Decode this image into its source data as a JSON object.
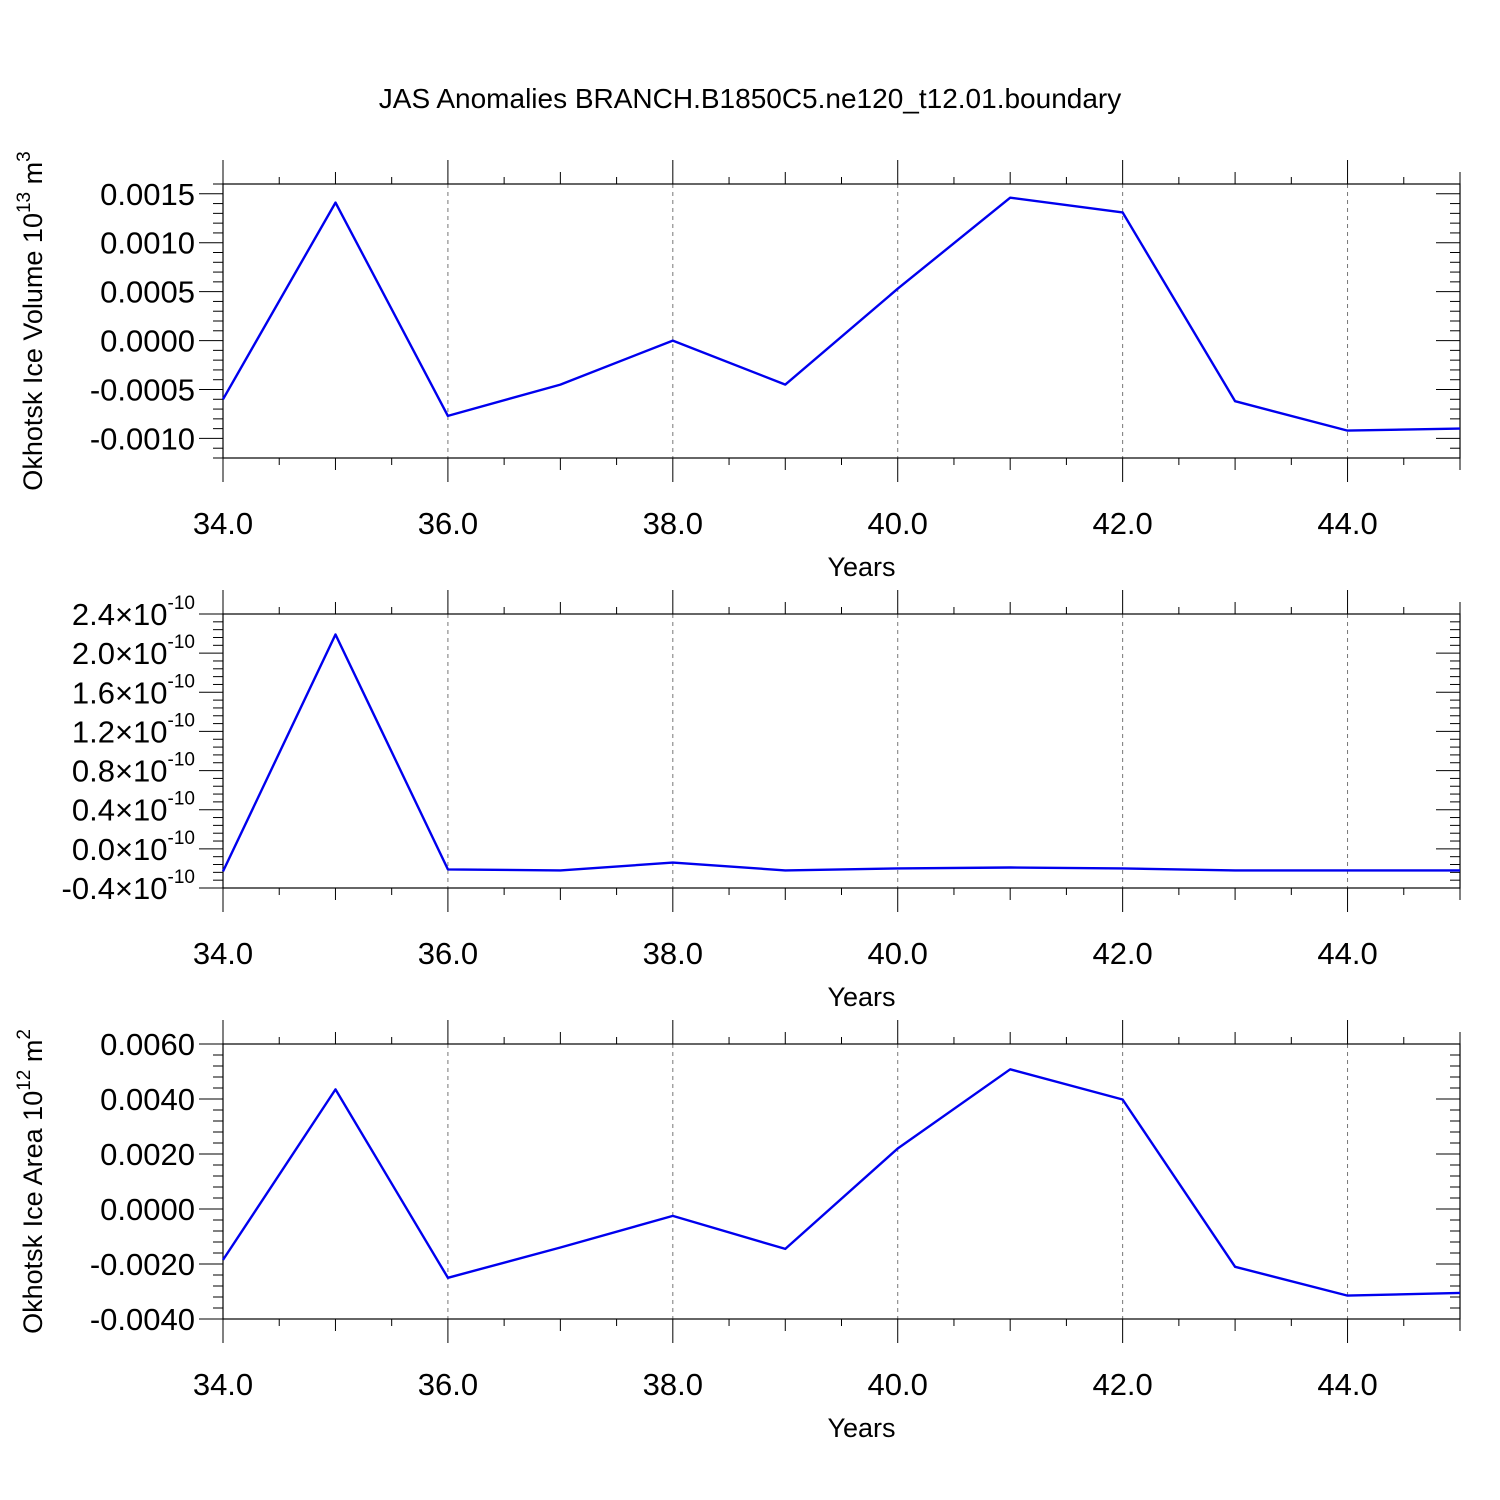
{
  "figure_title": "JAS Anomalies BRANCH.B1850C5.ne120_t12.01.boundary",
  "chart_data": [
    {
      "type": "line",
      "id": "ice-volume",
      "title": "",
      "xlabel": "Years",
      "ylabel": "Okhotsk Ice Volume 10",
      "ylabel_superscript": "13",
      "ylabel_unit": "m",
      "ylabel_unit_superscript": "3",
      "xlim": [
        34,
        45
      ],
      "ylim": [
        -0.0012,
        0.0016
      ],
      "x_ticks": [
        34,
        36,
        38,
        40,
        42,
        44
      ],
      "x_tick_labels": [
        "34.0",
        "36.0",
        "38.0",
        "40.0",
        "42.0",
        "44.0"
      ],
      "y_ticks": [
        -0.001,
        -0.0005,
        0,
        0.0005,
        0.001,
        0.0015
      ],
      "y_tick_labels": [
        "-0.0010",
        "-0.0005",
        "0.0000",
        "0.0005",
        "0.0010",
        "0.0015"
      ],
      "grid": "vertical-dashed",
      "line_color": "#0000ee",
      "x": [
        34,
        35,
        36,
        37,
        38,
        39,
        40,
        41,
        42,
        43,
        44,
        45
      ],
      "values": [
        -0.0006,
        0.00141,
        -0.00077,
        -0.00045,
        0.0,
        -0.00045,
        0.00053,
        0.00146,
        0.00131,
        -0.00062,
        -0.00092,
        -0.0009
      ]
    },
    {
      "type": "line",
      "id": "snow-volume",
      "title": "",
      "xlabel": "Years",
      "ylabel": "",
      "xlim": [
        34,
        45
      ],
      "ylim": [
        -4e-11,
        2.4e-10
      ],
      "x_ticks": [
        34,
        36,
        38,
        40,
        42,
        44
      ],
      "x_tick_labels": [
        "34.0",
        "36.0",
        "38.0",
        "40.0",
        "42.0",
        "44.0"
      ],
      "y_ticks": [
        -4e-11,
        0,
        4e-11,
        8e-11,
        1.2e-10,
        1.6e-10,
        2e-10,
        2.4e-10
      ],
      "y_tick_mantissas": [
        "-0.4",
        "0.0",
        "0.4",
        "0.8",
        "1.2",
        "1.6",
        "2.0",
        "2.4"
      ],
      "y_tick_times": "×10",
      "y_tick_exponent": "-10",
      "grid": "vertical-dashed",
      "line_color": "#0000ee",
      "x": [
        34,
        35,
        36,
        37,
        38,
        39,
        40,
        41,
        42,
        43,
        44,
        45
      ],
      "values": [
        -2.3e-11,
        2.19e-10,
        -2.1e-11,
        -2.2e-11,
        -1.4e-11,
        -2.2e-11,
        -2e-11,
        -1.9e-11,
        -2e-11,
        -2.2e-11,
        -2.2e-11,
        -2.2e-11
      ]
    },
    {
      "type": "line",
      "id": "ice-area",
      "title": "",
      "xlabel": "Years",
      "ylabel": "Okhotsk Ice Area 10",
      "ylabel_superscript": "12",
      "ylabel_unit": "m",
      "ylabel_unit_superscript": "2",
      "xlim": [
        34,
        45
      ],
      "ylim": [
        -0.004,
        0.006
      ],
      "x_ticks": [
        34,
        36,
        38,
        40,
        42,
        44
      ],
      "x_tick_labels": [
        "34.0",
        "36.0",
        "38.0",
        "40.0",
        "42.0",
        "44.0"
      ],
      "y_ticks": [
        -0.004,
        -0.002,
        0,
        0.002,
        0.004,
        0.006
      ],
      "y_tick_labels": [
        "-0.0040",
        "-0.0020",
        "0.0000",
        "0.0020",
        "0.0040",
        "0.0060"
      ],
      "grid": "vertical-dashed",
      "line_color": "#0000ee",
      "x": [
        34,
        35,
        36,
        37,
        38,
        39,
        40,
        41,
        42,
        43,
        44,
        45
      ],
      "values": [
        -0.00185,
        0.00435,
        -0.0025,
        -0.0014,
        -0.00025,
        -0.00145,
        0.0022,
        0.00508,
        0.00398,
        -0.0021,
        -0.00315,
        -0.00305
      ]
    }
  ]
}
